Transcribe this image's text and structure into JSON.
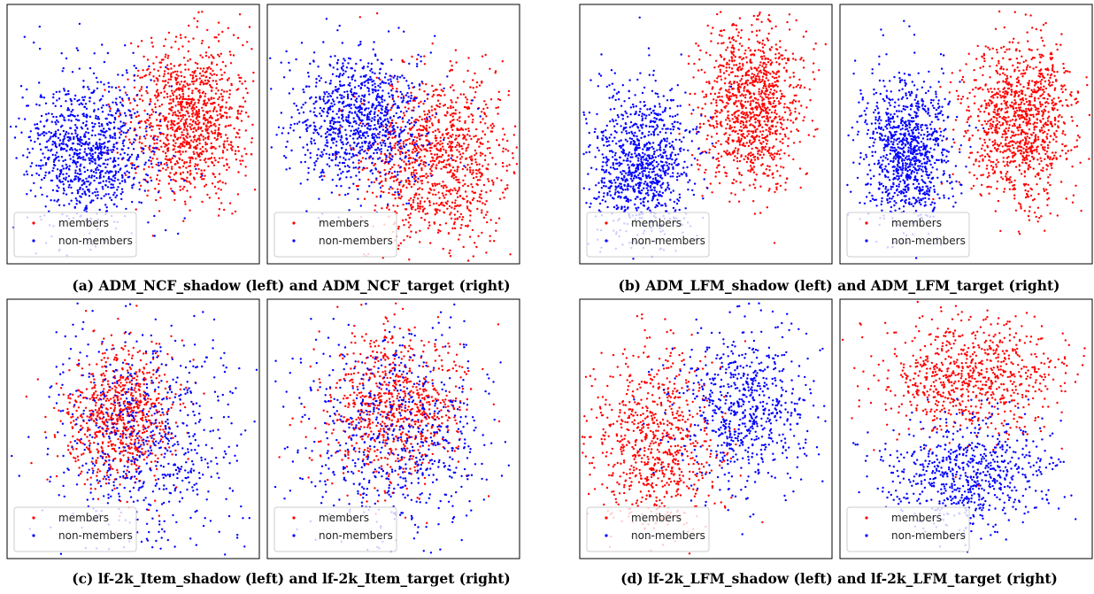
{
  "figure": {
    "captions": [
      "(a) ADM_NCF_shadow (left) and ADM_NCF_target (right)",
      "(b) ADM_LFM_shadow (left) and ADM_LFM_target (right)",
      "(c) lf-2k_Item_shadow (left) and lf-2k_Item_target (right)",
      "(d) lf-2k_LFM_shadow (left) and lf-2k_LFM_target (right)"
    ]
  },
  "colors": {
    "members": "#ff0000",
    "non_members": "#0000ff"
  },
  "chart_data": [
    {
      "type": "scatter",
      "legend": {
        "position": "bottom-left",
        "entries": [
          "members",
          "non-members"
        ]
      },
      "grid": false,
      "series": [
        {
          "name": "members",
          "color": "#ff0000",
          "count": 1100,
          "center": [
            0.72,
            0.56
          ],
          "spread": [
            0.12,
            0.15
          ]
        },
        {
          "name": "non-members",
          "color": "#0000ff",
          "count": 1000,
          "center": [
            0.32,
            0.42
          ],
          "spread": [
            0.13,
            0.15
          ]
        }
      ]
    },
    {
      "type": "scatter",
      "legend": {
        "position": "bottom-left",
        "entries": [
          "members",
          "non-members"
        ]
      },
      "grid": false,
      "series": [
        {
          "name": "members",
          "color": "#ff0000",
          "count": 1100,
          "center": [
            0.68,
            0.4
          ],
          "spread": [
            0.15,
            0.17
          ]
        },
        {
          "name": "non-members",
          "color": "#0000ff",
          "count": 1000,
          "center": [
            0.36,
            0.55
          ],
          "spread": [
            0.13,
            0.13
          ]
        }
      ]
    },
    {
      "type": "scatter",
      "legend": {
        "position": "bottom-left",
        "entries": [
          "members",
          "non-members"
        ]
      },
      "grid": false,
      "series": [
        {
          "name": "members",
          "color": "#ff0000",
          "count": 1100,
          "center": [
            0.68,
            0.62
          ],
          "spread": [
            0.1,
            0.16
          ]
        },
        {
          "name": "non-members",
          "color": "#0000ff",
          "count": 1000,
          "center": [
            0.25,
            0.38
          ],
          "spread": [
            0.1,
            0.15
          ]
        }
      ]
    },
    {
      "type": "scatter",
      "legend": {
        "position": "bottom-left",
        "entries": [
          "members",
          "non-members"
        ]
      },
      "grid": false,
      "series": [
        {
          "name": "members",
          "color": "#ff0000",
          "count": 1100,
          "center": [
            0.72,
            0.55
          ],
          "spread": [
            0.11,
            0.16
          ]
        },
        {
          "name": "non-members",
          "color": "#0000ff",
          "count": 1000,
          "center": [
            0.27,
            0.43
          ],
          "spread": [
            0.09,
            0.15
          ]
        }
      ]
    },
    {
      "type": "scatter",
      "legend": {
        "position": "bottom-left",
        "entries": [
          "members",
          "non-members"
        ]
      },
      "grid": false,
      "series": [
        {
          "name": "members",
          "color": "#ff0000",
          "count": 800,
          "center": [
            0.45,
            0.55
          ],
          "spread": [
            0.11,
            0.13
          ]
        },
        {
          "name": "non-members",
          "color": "#0000ff",
          "count": 700,
          "center": [
            0.55,
            0.45
          ],
          "spread": [
            0.19,
            0.22
          ]
        }
      ]
    },
    {
      "type": "scatter",
      "legend": {
        "position": "bottom-left",
        "entries": [
          "members",
          "non-members"
        ]
      },
      "grid": false,
      "series": [
        {
          "name": "members",
          "color": "#ff0000",
          "count": 800,
          "center": [
            0.5,
            0.58
          ],
          "spread": [
            0.14,
            0.15
          ]
        },
        {
          "name": "non-members",
          "color": "#0000ff",
          "count": 700,
          "center": [
            0.52,
            0.48
          ],
          "spread": [
            0.2,
            0.2
          ]
        }
      ]
    },
    {
      "type": "scatter",
      "legend": {
        "position": "bottom-left",
        "entries": [
          "members",
          "non-members"
        ]
      },
      "grid": false,
      "series": [
        {
          "name": "members",
          "color": "#ff0000",
          "count": 800,
          "center": [
            0.3,
            0.45
          ],
          "spread": [
            0.13,
            0.18
          ]
        },
        {
          "name": "non-members",
          "color": "#0000ff",
          "count": 700,
          "center": [
            0.65,
            0.58
          ],
          "spread": [
            0.14,
            0.16
          ]
        }
      ]
    },
    {
      "type": "scatter",
      "legend": {
        "position": "bottom-left",
        "entries": [
          "members",
          "non-members"
        ]
      },
      "grid": false,
      "series": [
        {
          "name": "members",
          "color": "#ff0000",
          "count": 800,
          "center": [
            0.52,
            0.7
          ],
          "spread": [
            0.18,
            0.11
          ]
        },
        {
          "name": "non-members",
          "color": "#0000ff",
          "count": 700,
          "center": [
            0.5,
            0.32
          ],
          "spread": [
            0.16,
            0.11
          ]
        }
      ]
    }
  ]
}
